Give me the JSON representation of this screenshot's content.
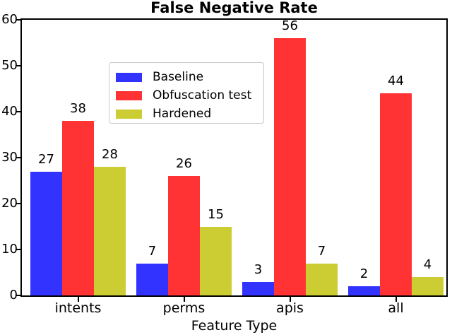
{
  "chart_data": {
    "type": "bar",
    "title": "False Negative Rate",
    "xlabel": "Feature Type",
    "ylabel": "",
    "categories": [
      "intents",
      "perms",
      "apis",
      "all"
    ],
    "series": [
      {
        "name": "Baseline",
        "color": "#3333FF",
        "values": [
          27,
          7,
          3,
          2
        ]
      },
      {
        "name": "Obfuscation test",
        "color": "#FF3333",
        "values": [
          38,
          26,
          56,
          44
        ]
      },
      {
        "name": "Hardened",
        "color": "#CCCC33",
        "values": [
          28,
          15,
          7,
          4
        ]
      }
    ],
    "ylim": [
      0,
      60
    ],
    "yticks": [
      0,
      10,
      20,
      30,
      40,
      50,
      60
    ],
    "bar_value_labels": true,
    "legend_position": "upper-left-inside",
    "grid": false,
    "frame_color": "#000000",
    "background_color": "#FFFFFF"
  }
}
